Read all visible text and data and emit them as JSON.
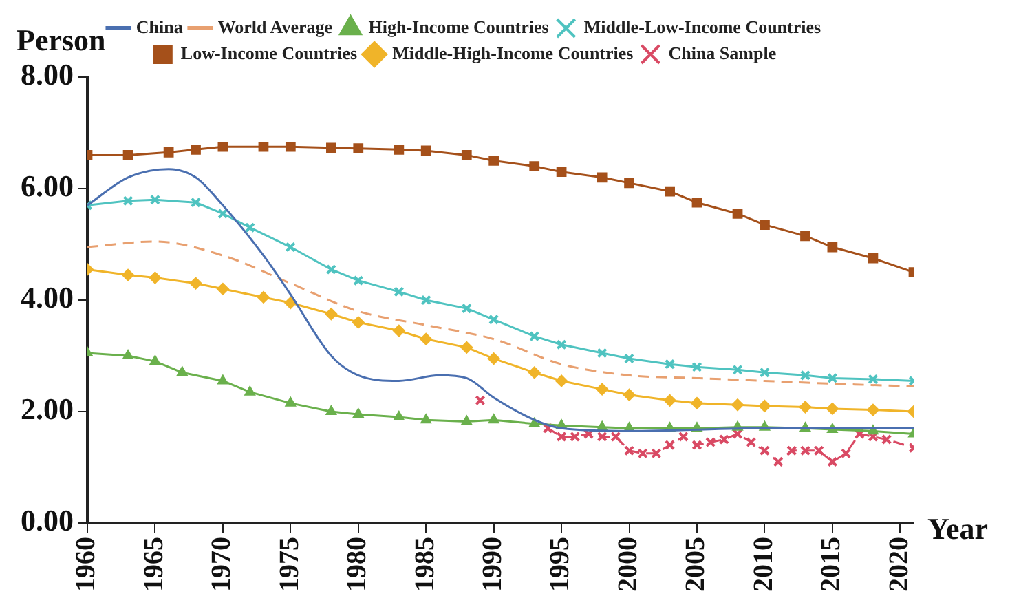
{
  "chart_data": {
    "type": "line",
    "xlabel": "Year",
    "ylabel": "Person",
    "xlim": [
      1960,
      2021
    ],
    "xticks": [
      1960,
      1965,
      1970,
      1975,
      1980,
      1985,
      1990,
      1995,
      2000,
      2005,
      2010,
      2015,
      2020
    ],
    "ylim": [
      0,
      8
    ],
    "yticks": [
      {
        "value": 0,
        "label": "0.00"
      },
      {
        "value": 2,
        "label": "2.00"
      },
      {
        "value": 4,
        "label": "4.00"
      },
      {
        "value": 6,
        "label": "6.00"
      },
      {
        "value": 8,
        "label": "8.00"
      }
    ],
    "legend": "top",
    "series": [
      {
        "name": "China",
        "color": "#4a6fb0",
        "marker": "none",
        "line_style": "solid",
        "x": [
          1960,
          1963,
          1966,
          1968,
          1970,
          1973,
          1975,
          1978,
          1980,
          1983,
          1986,
          1988,
          1990,
          1993,
          1995,
          2000,
          2010,
          2021
        ],
        "values": [
          5.7,
          6.2,
          6.35,
          6.2,
          5.7,
          4.8,
          4.1,
          3.0,
          2.65,
          2.55,
          2.65,
          2.6,
          2.25,
          1.85,
          1.7,
          1.65,
          1.7,
          1.7
        ]
      },
      {
        "name": "World Average",
        "color": "#e8a070",
        "marker": "none",
        "line_style": "dashed",
        "x": [
          1960,
          1965,
          1970,
          1975,
          1980,
          1985,
          1990,
          1995,
          2000,
          2005,
          2010,
          2015,
          2021
        ],
        "values": [
          4.95,
          5.05,
          4.8,
          4.3,
          3.8,
          3.55,
          3.3,
          2.85,
          2.65,
          2.6,
          2.55,
          2.5,
          2.45
        ]
      },
      {
        "name": "High-Income Countries",
        "color": "#6ab04c",
        "marker": "triangle",
        "line_style": "solid",
        "x": [
          1960,
          1963,
          1965,
          1967,
          1970,
          1972,
          1975,
          1978,
          1980,
          1983,
          1985,
          1988,
          1990,
          1993,
          1995,
          1998,
          2000,
          2003,
          2005,
          2008,
          2010,
          2013,
          2015,
          2018,
          2021
        ],
        "values": [
          3.05,
          3.0,
          2.9,
          2.7,
          2.55,
          2.35,
          2.15,
          2.0,
          1.95,
          1.9,
          1.85,
          1.82,
          1.85,
          1.78,
          1.75,
          1.72,
          1.7,
          1.7,
          1.7,
          1.72,
          1.72,
          1.7,
          1.68,
          1.65,
          1.6
        ]
      },
      {
        "name": "Middle-Low-Income Countries",
        "color": "#4fc3c0",
        "marker": "cross",
        "line_style": "solid",
        "x": [
          1960,
          1963,
          1965,
          1968,
          1970,
          1972,
          1975,
          1978,
          1980,
          1983,
          1985,
          1988,
          1990,
          1993,
          1995,
          1998,
          2000,
          2003,
          2005,
          2008,
          2010,
          2013,
          2015,
          2018,
          2021
        ],
        "values": [
          5.7,
          5.78,
          5.8,
          5.75,
          5.55,
          5.3,
          4.95,
          4.55,
          4.35,
          4.15,
          4.0,
          3.85,
          3.65,
          3.35,
          3.2,
          3.05,
          2.95,
          2.85,
          2.8,
          2.75,
          2.7,
          2.65,
          2.6,
          2.58,
          2.55
        ]
      },
      {
        "name": "Low-Income Countries",
        "color": "#a5501a",
        "marker": "square",
        "line_style": "solid",
        "x": [
          1960,
          1963,
          1966,
          1968,
          1970,
          1973,
          1975,
          1978,
          1980,
          1983,
          1985,
          1988,
          1990,
          1993,
          1995,
          1998,
          2000,
          2003,
          2005,
          2008,
          2010,
          2013,
          2015,
          2018,
          2021
        ],
        "values": [
          6.6,
          6.6,
          6.65,
          6.7,
          6.75,
          6.75,
          6.75,
          6.73,
          6.72,
          6.7,
          6.68,
          6.6,
          6.5,
          6.4,
          6.3,
          6.2,
          6.1,
          5.95,
          5.75,
          5.55,
          5.35,
          5.15,
          4.95,
          4.75,
          4.5
        ]
      },
      {
        "name": "Middle-High-Income Countries",
        "color": "#f0b429",
        "marker": "diamond",
        "line_style": "solid",
        "x": [
          1960,
          1963,
          1965,
          1968,
          1970,
          1973,
          1975,
          1978,
          1980,
          1983,
          1985,
          1988,
          1990,
          1993,
          1995,
          1998,
          2000,
          2003,
          2005,
          2008,
          2010,
          2013,
          2015,
          2018,
          2021
        ],
        "values": [
          4.55,
          4.45,
          4.4,
          4.3,
          4.2,
          4.05,
          3.95,
          3.75,
          3.6,
          3.45,
          3.3,
          3.15,
          2.95,
          2.7,
          2.55,
          2.4,
          2.3,
          2.2,
          2.15,
          2.12,
          2.1,
          2.08,
          2.05,
          2.03,
          2.0
        ]
      },
      {
        "name": "China Sample",
        "color": "#d94a64",
        "marker": "cross",
        "line_style": "dashed",
        "x": [
          1989,
          1990,
          1994,
          1995,
          1996,
          1997,
          1998,
          1999,
          2000,
          2001,
          2002,
          2003,
          2004,
          2005,
          2006,
          2007,
          2008,
          2009,
          2010,
          2011,
          2012,
          2013,
          2014,
          2015,
          2016,
          2017,
          2018,
          2019,
          2021
        ],
        "values": [
          2.2,
          null,
          1.7,
          1.55,
          1.55,
          1.6,
          1.55,
          1.55,
          1.3,
          1.25,
          1.25,
          1.4,
          1.55,
          1.4,
          1.45,
          1.5,
          1.6,
          1.45,
          1.3,
          1.1,
          1.3,
          1.3,
          1.3,
          1.1,
          1.25,
          1.6,
          1.55,
          1.5,
          1.35
        ]
      }
    ]
  }
}
